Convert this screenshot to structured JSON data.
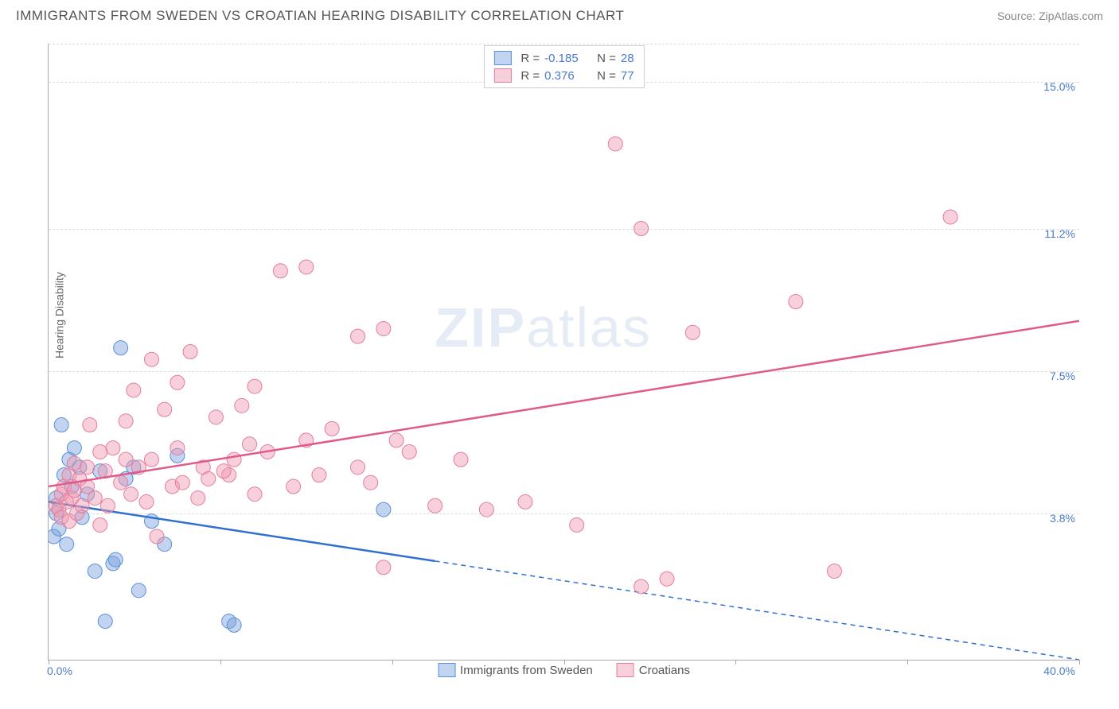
{
  "title": "IMMIGRANTS FROM SWEDEN VS CROATIAN HEARING DISABILITY CORRELATION CHART",
  "source": "Source: ZipAtlas.com",
  "y_axis_label": "Hearing Disability",
  "watermark": {
    "bold": "ZIP",
    "rest": "atlas"
  },
  "chart": {
    "type": "scatter",
    "xlim": [
      0,
      40
    ],
    "ylim": [
      0,
      16
    ],
    "x_ticks": [
      0,
      6.67,
      13.33,
      20,
      26.67,
      33.33,
      40
    ],
    "x_tick_labels_shown": {
      "left": "0.0%",
      "right": "40.0%"
    },
    "y_grid": [
      {
        "val": 3.8,
        "label": "3.8%"
      },
      {
        "val": 7.5,
        "label": "7.5%"
      },
      {
        "val": 11.2,
        "label": "11.2%"
      },
      {
        "val": 15.0,
        "label": "15.0%"
      }
    ],
    "grid_color": "#dddddd",
    "background_color": "#ffffff",
    "axis_color": "#aaaaaa",
    "tick_label_color": "#4a7bc8"
  },
  "series": [
    {
      "name": "Immigrants from Sweden",
      "marker_fill": "rgba(120,160,220,0.45)",
      "marker_stroke": "#5b8fd6",
      "line_color": "#2f6fd0",
      "r_value": "-0.185",
      "n_value": "28",
      "marker_radius": 9,
      "line_width": 2.5,
      "regression": {
        "x1": 0,
        "y1": 4.1,
        "x2": 40,
        "y2": 0.0,
        "solid_until_x": 15
      },
      "points": [
        [
          0.2,
          3.2
        ],
        [
          0.3,
          3.8
        ],
        [
          0.3,
          4.2
        ],
        [
          0.4,
          3.4
        ],
        [
          0.5,
          6.1
        ],
        [
          0.6,
          4.8
        ],
        [
          0.7,
          3.0
        ],
        [
          0.8,
          5.2
        ],
        [
          0.9,
          4.5
        ],
        [
          1.0,
          5.5
        ],
        [
          1.2,
          5.0
        ],
        [
          1.3,
          3.7
        ],
        [
          1.5,
          4.3
        ],
        [
          1.8,
          2.3
        ],
        [
          2.0,
          4.9
        ],
        [
          2.2,
          1.0
        ],
        [
          2.5,
          2.5
        ],
        [
          2.6,
          2.6
        ],
        [
          2.8,
          8.1
        ],
        [
          3.0,
          4.7
        ],
        [
          3.3,
          5.0
        ],
        [
          3.5,
          1.8
        ],
        [
          4.5,
          3.0
        ],
        [
          5.0,
          5.3
        ],
        [
          7.0,
          1.0
        ],
        [
          7.2,
          0.9
        ],
        [
          13.0,
          3.9
        ],
        [
          4.0,
          3.6
        ]
      ]
    },
    {
      "name": "Croatians",
      "marker_fill": "rgba(240,150,175,0.45)",
      "marker_stroke": "#e27d9b",
      "line_color": "#e05a8a",
      "r_value": "0.376",
      "n_value": "77",
      "marker_radius": 9,
      "line_width": 2.5,
      "regression": {
        "x1": 0,
        "y1": 4.5,
        "x2": 40,
        "y2": 8.8,
        "solid_until_x": 40
      },
      "points": [
        [
          0.3,
          4.0
        ],
        [
          0.4,
          3.9
        ],
        [
          0.5,
          4.3
        ],
        [
          0.5,
          3.7
        ],
        [
          0.6,
          4.5
        ],
        [
          0.7,
          4.1
        ],
        [
          0.8,
          3.6
        ],
        [
          0.8,
          4.8
        ],
        [
          0.9,
          4.2
        ],
        [
          1.0,
          4.4
        ],
        [
          1.0,
          5.1
        ],
        [
          1.1,
          3.8
        ],
        [
          1.2,
          4.7
        ],
        [
          1.3,
          4.0
        ],
        [
          1.5,
          5.0
        ],
        [
          1.5,
          4.5
        ],
        [
          1.6,
          6.1
        ],
        [
          1.8,
          4.2
        ],
        [
          2.0,
          3.5
        ],
        [
          2.0,
          5.4
        ],
        [
          2.2,
          4.9
        ],
        [
          2.3,
          4.0
        ],
        [
          2.5,
          5.5
        ],
        [
          2.8,
          4.6
        ],
        [
          3.0,
          5.2
        ],
        [
          3.0,
          6.2
        ],
        [
          3.2,
          4.3
        ],
        [
          3.3,
          7.0
        ],
        [
          3.5,
          5.0
        ],
        [
          3.8,
          4.1
        ],
        [
          4.0,
          5.2
        ],
        [
          4.0,
          7.8
        ],
        [
          4.2,
          3.2
        ],
        [
          4.5,
          6.5
        ],
        [
          4.8,
          4.5
        ],
        [
          5.0,
          7.2
        ],
        [
          5.0,
          5.5
        ],
        [
          5.2,
          4.6
        ],
        [
          5.5,
          8.0
        ],
        [
          6.0,
          5.0
        ],
        [
          6.2,
          4.7
        ],
        [
          6.5,
          6.3
        ],
        [
          7.0,
          4.8
        ],
        [
          7.2,
          5.2
        ],
        [
          7.5,
          6.6
        ],
        [
          8.0,
          4.3
        ],
        [
          8.0,
          7.1
        ],
        [
          8.5,
          5.4
        ],
        [
          9.0,
          10.1
        ],
        [
          9.5,
          4.5
        ],
        [
          10.0,
          5.7
        ],
        [
          10.0,
          10.2
        ],
        [
          10.5,
          4.8
        ],
        [
          11.0,
          6.0
        ],
        [
          12.0,
          5.0
        ],
        [
          12.0,
          8.4
        ],
        [
          12.5,
          4.6
        ],
        [
          13.0,
          8.6
        ],
        [
          13.0,
          2.4
        ],
        [
          13.5,
          5.7
        ],
        [
          14.0,
          5.4
        ],
        [
          15.0,
          4.0
        ],
        [
          16.0,
          5.2
        ],
        [
          17.0,
          3.9
        ],
        [
          18.5,
          4.1
        ],
        [
          20.5,
          3.5
        ],
        [
          22.0,
          13.4
        ],
        [
          23.0,
          11.2
        ],
        [
          23.0,
          1.9
        ],
        [
          24.0,
          2.1
        ],
        [
          25.0,
          8.5
        ],
        [
          29.0,
          9.3
        ],
        [
          30.5,
          2.3
        ],
        [
          35.0,
          11.5
        ],
        [
          5.8,
          4.2
        ],
        [
          6.8,
          4.9
        ],
        [
          7.8,
          5.6
        ]
      ]
    }
  ],
  "legend_bottom": [
    {
      "label": "Immigrants from Sweden",
      "fill": "rgba(120,160,220,0.45)",
      "stroke": "#5b8fd6"
    },
    {
      "label": "Croatians",
      "fill": "rgba(240,150,175,0.45)",
      "stroke": "#e27d9b"
    }
  ]
}
